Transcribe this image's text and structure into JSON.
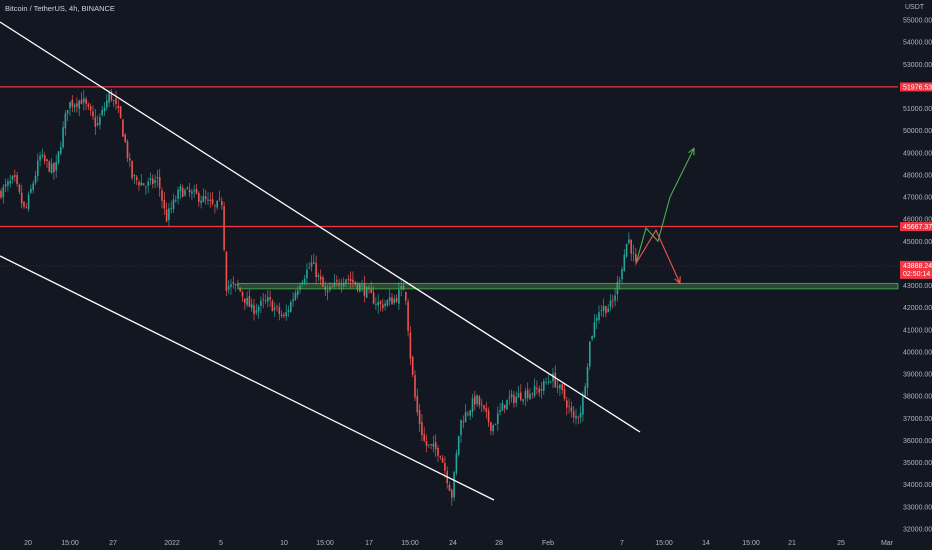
{
  "header": {
    "symbol_title": "Bitcoin / TetherUS, 4h, BINANCE"
  },
  "price_scale": {
    "currency": "USDT",
    "ticks": [
      "55000.00",
      "54000.00",
      "53000.00",
      "52000.00",
      "51000.00",
      "50000.00",
      "49000.00",
      "48000.00",
      "47000.00",
      "46000.00",
      "45000.00",
      "44000.00",
      "43000.00",
      "42000.00",
      "41000.00",
      "40000.00",
      "39000.00",
      "38000.00",
      "37000.00",
      "36000.00",
      "35000.00",
      "34000.00",
      "33000.00",
      "32000.00"
    ],
    "badges": {
      "resistance_upper": "51976.53",
      "resistance_lower": "45667.37",
      "last_price": "43888.24",
      "countdown": "02:50:14"
    }
  },
  "time_scale": {
    "ticks": [
      "20",
      "15:00",
      "27",
      "2022",
      "5",
      "10",
      "15:00",
      "17",
      "15:00",
      "24",
      "28",
      "Feb",
      "7",
      "15:00",
      "14",
      "15:00",
      "21",
      "25",
      "Mar"
    ]
  },
  "colors": {
    "background": "#131722",
    "up_candle": "#26a69a",
    "down_candle": "#ef5350",
    "horizontal_line": "#f23645",
    "trendline": "#ffffff",
    "support_zone": "#4caf50",
    "arrow_up": "#4caf50",
    "arrow_down": "#ef5350"
  },
  "chart_data": {
    "type": "candlestick",
    "title": "Bitcoin / TetherUS, 4h, BINANCE",
    "y_unit": "USDT",
    "ylim": [
      31800,
      55300
    ],
    "grid": false,
    "price_path": [
      {
        "x": 0,
        "price": 47200
      },
      {
        "x": 14,
        "price": 47800
      },
      {
        "x": 25,
        "price": 46300
      },
      {
        "x": 40,
        "price": 48800
      },
      {
        "x": 55,
        "price": 48100
      },
      {
        "x": 68,
        "price": 51200
      },
      {
        "x": 82,
        "price": 51400
      },
      {
        "x": 97,
        "price": 50200
      },
      {
        "x": 110,
        "price": 51700
      },
      {
        "x": 120,
        "price": 50600
      },
      {
        "x": 132,
        "price": 47900
      },
      {
        "x": 146,
        "price": 47500
      },
      {
        "x": 158,
        "price": 47800
      },
      {
        "x": 166,
        "price": 46000
      },
      {
        "x": 180,
        "price": 47300
      },
      {
        "x": 200,
        "price": 47000
      },
      {
        "x": 215,
        "price": 46500
      },
      {
        "x": 222,
        "price": 46800
      },
      {
        "x": 226,
        "price": 43000
      },
      {
        "x": 238,
        "price": 42900
      },
      {
        "x": 252,
        "price": 41900
      },
      {
        "x": 268,
        "price": 42300
      },
      {
        "x": 284,
        "price": 41500
      },
      {
        "x": 300,
        "price": 43200
      },
      {
        "x": 312,
        "price": 44000
      },
      {
        "x": 326,
        "price": 42600
      },
      {
        "x": 345,
        "price": 43400
      },
      {
        "x": 362,
        "price": 42900
      },
      {
        "x": 380,
        "price": 42100
      },
      {
        "x": 395,
        "price": 42400
      },
      {
        "x": 405,
        "price": 43000
      },
      {
        "x": 410,
        "price": 40000
      },
      {
        "x": 416,
        "price": 37500
      },
      {
        "x": 425,
        "price": 35800
      },
      {
        "x": 440,
        "price": 35500
      },
      {
        "x": 452,
        "price": 33500
      },
      {
        "x": 460,
        "price": 36800
      },
      {
        "x": 476,
        "price": 37900
      },
      {
        "x": 492,
        "price": 36600
      },
      {
        "x": 505,
        "price": 37700
      },
      {
        "x": 522,
        "price": 38100
      },
      {
        "x": 540,
        "price": 38300
      },
      {
        "x": 552,
        "price": 38900
      },
      {
        "x": 566,
        "price": 37800
      },
      {
        "x": 574,
        "price": 36900
      },
      {
        "x": 582,
        "price": 37500
      },
      {
        "x": 590,
        "price": 40500
      },
      {
        "x": 598,
        "price": 41900
      },
      {
        "x": 612,
        "price": 42100
      },
      {
        "x": 620,
        "price": 43500
      },
      {
        "x": 628,
        "price": 45200
      },
      {
        "x": 636,
        "price": 43900
      }
    ],
    "horizontal_levels": [
      51976.53,
      45667.37
    ],
    "support_zone": [
      42850,
      43100
    ],
    "projection_up": [
      [
        636,
        44000
      ],
      [
        646,
        45600
      ],
      [
        658,
        45000
      ],
      [
        670,
        47000
      ],
      [
        694,
        49200
      ]
    ],
    "projection_down": [
      [
        636,
        44000
      ],
      [
        656,
        45500
      ],
      [
        680,
        43100
      ]
    ]
  }
}
